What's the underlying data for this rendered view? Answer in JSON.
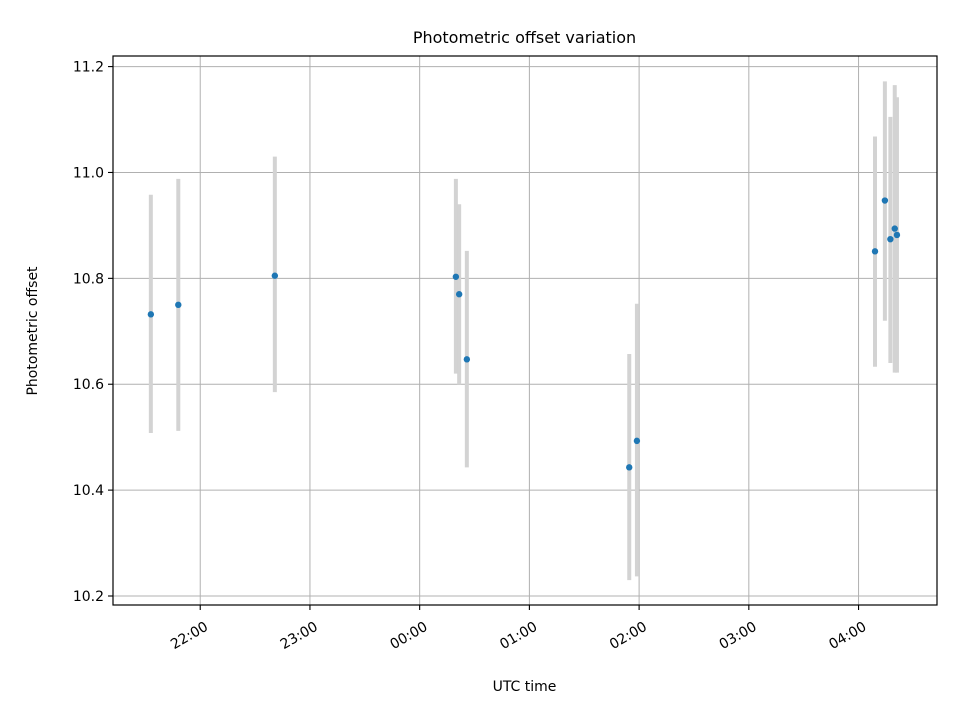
{
  "chart_data": {
    "type": "scatter",
    "title": "Photometric offset variation",
    "xlabel": "UTC time",
    "ylabel": "Photometric offset",
    "x_unit": "UTC clock time (hours past midnight; times before midnight are negative)",
    "xlim": [
      -2.795,
      4.715
    ],
    "ylim": [
      10.183,
      11.22
    ],
    "x_ticks": [
      {
        "value": -2.0,
        "label": "22:00"
      },
      {
        "value": -1.0,
        "label": "23:00"
      },
      {
        "value": 0.0,
        "label": "00:00"
      },
      {
        "value": 1.0,
        "label": "01:00"
      },
      {
        "value": 2.0,
        "label": "02:00"
      },
      {
        "value": 3.0,
        "label": "03:00"
      },
      {
        "value": 4.0,
        "label": "04:00"
      }
    ],
    "y_ticks": [
      {
        "value": 10.2,
        "label": "10.2"
      },
      {
        "value": 10.4,
        "label": "10.4"
      },
      {
        "value": 10.6,
        "label": "10.6"
      },
      {
        "value": 10.8,
        "label": "10.8"
      },
      {
        "value": 11.0,
        "label": "11.0"
      },
      {
        "value": 11.2,
        "label": "11.2"
      }
    ],
    "grid": true,
    "colors": {
      "points": "#1f77b4",
      "error_bars": "#d3d3d3",
      "grid": "#b0b0b0"
    },
    "points": [
      {
        "x": -2.45,
        "y": 10.732,
        "err_low": 10.508,
        "err_high": 10.958
      },
      {
        "x": -2.2,
        "y": 10.75,
        "err_low": 10.512,
        "err_high": 10.988
      },
      {
        "x": -1.32,
        "y": 10.805,
        "err_low": 10.585,
        "err_high": 11.03
      },
      {
        "x": 0.33,
        "y": 10.803,
        "err_low": 10.62,
        "err_high": 10.988
      },
      {
        "x": 0.36,
        "y": 10.77,
        "err_low": 10.6,
        "err_high": 10.94
      },
      {
        "x": 0.43,
        "y": 10.647,
        "err_low": 10.443,
        "err_high": 10.852
      },
      {
        "x": 1.91,
        "y": 10.443,
        "err_low": 10.23,
        "err_high": 10.657
      },
      {
        "x": 1.98,
        "y": 10.493,
        "err_low": 10.237,
        "err_high": 10.752
      },
      {
        "x": 4.15,
        "y": 10.851,
        "err_low": 10.633,
        "err_high": 11.068
      },
      {
        "x": 4.24,
        "y": 10.947,
        "err_low": 10.72,
        "err_high": 11.172
      },
      {
        "x": 4.29,
        "y": 10.874,
        "err_low": 10.64,
        "err_high": 11.105
      },
      {
        "x": 4.33,
        "y": 10.894,
        "err_low": 10.622,
        "err_high": 11.165
      },
      {
        "x": 4.35,
        "y": 10.882,
        "err_low": 10.622,
        "err_high": 11.142
      }
    ]
  }
}
